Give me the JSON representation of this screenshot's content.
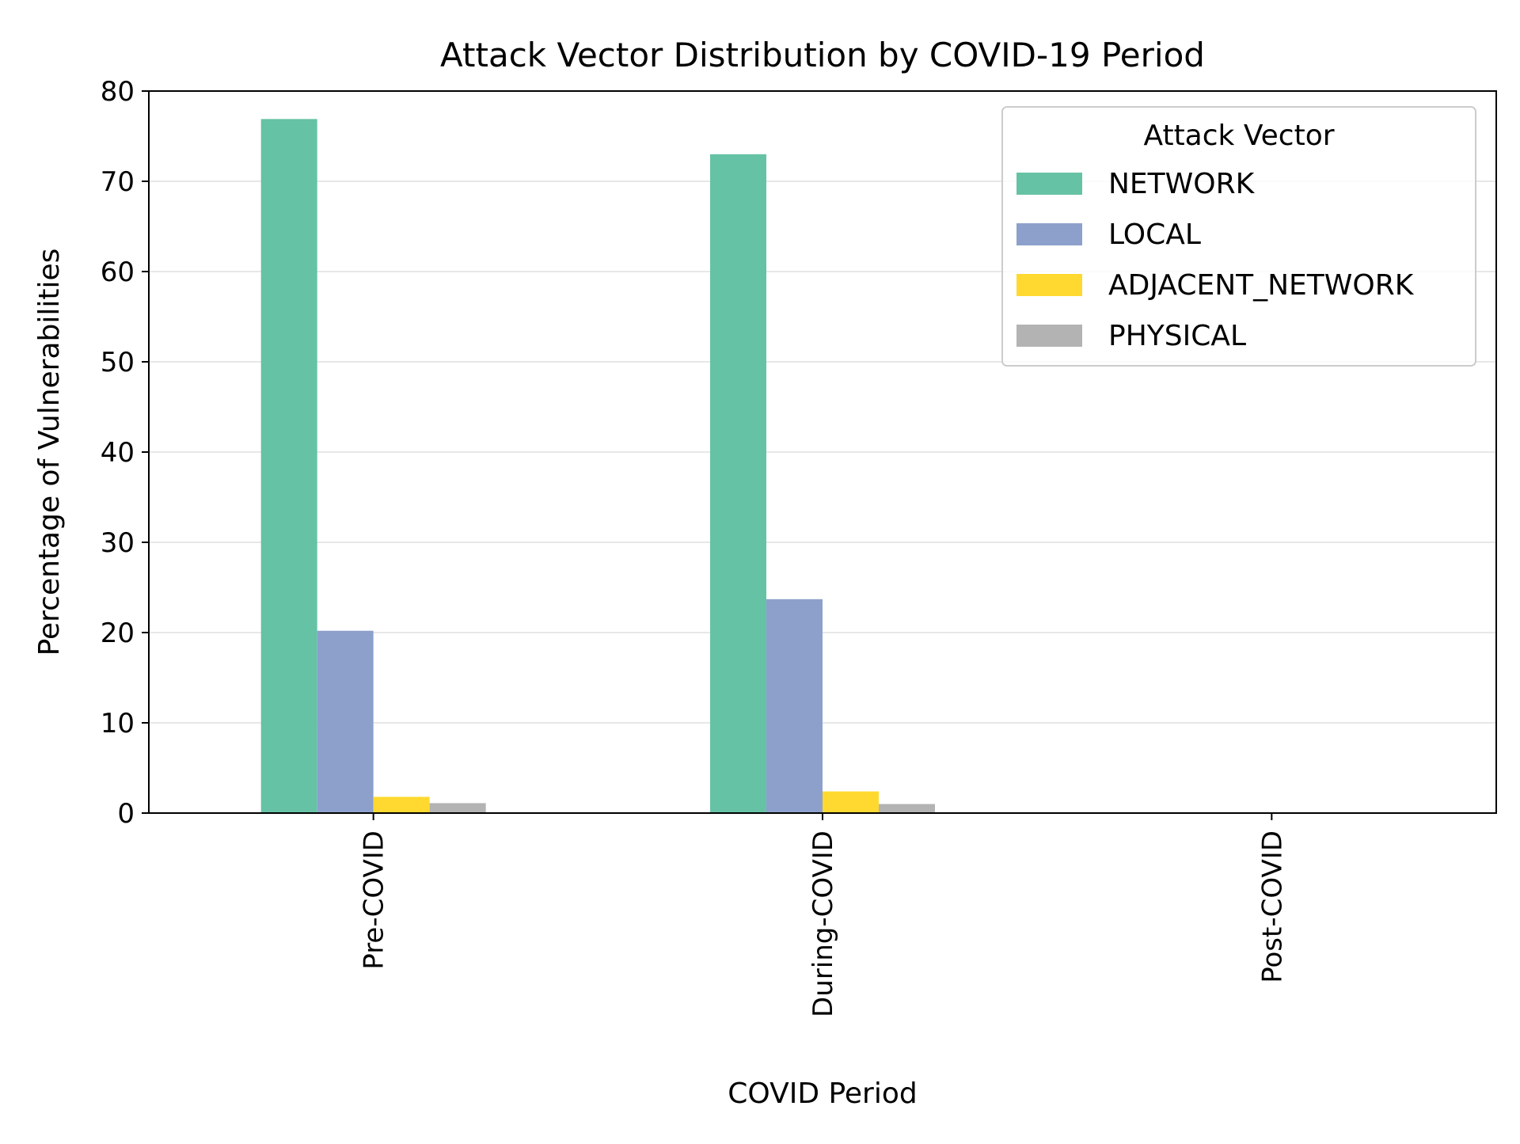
{
  "chart_data": {
    "type": "bar",
    "title": "Attack Vector Distribution by COVID-19 Period",
    "xlabel": "COVID Period",
    "ylabel": "Percentage of Vulnerabilities",
    "categories": [
      "Pre-COVID",
      "During-COVID",
      "Post-COVID"
    ],
    "series": [
      {
        "name": "NETWORK",
        "color": "#66c2a5",
        "values": [
          76.9,
          73.0,
          0
        ]
      },
      {
        "name": "LOCAL",
        "color": "#8da0cb",
        "values": [
          20.2,
          23.7,
          0
        ]
      },
      {
        "name": "ADJACENT_NETWORK",
        "color": "#ffd92f",
        "values": [
          1.8,
          2.4,
          0
        ]
      },
      {
        "name": "PHYSICAL",
        "color": "#b3b3b3",
        "values": [
          1.1,
          1.0,
          0
        ]
      }
    ],
    "ylim": [
      0,
      80
    ],
    "yticks": [
      0,
      10,
      20,
      30,
      40,
      50,
      60,
      70,
      80
    ],
    "grid": "y",
    "legend": {
      "title": "Attack Vector",
      "placement": "upper right"
    }
  }
}
